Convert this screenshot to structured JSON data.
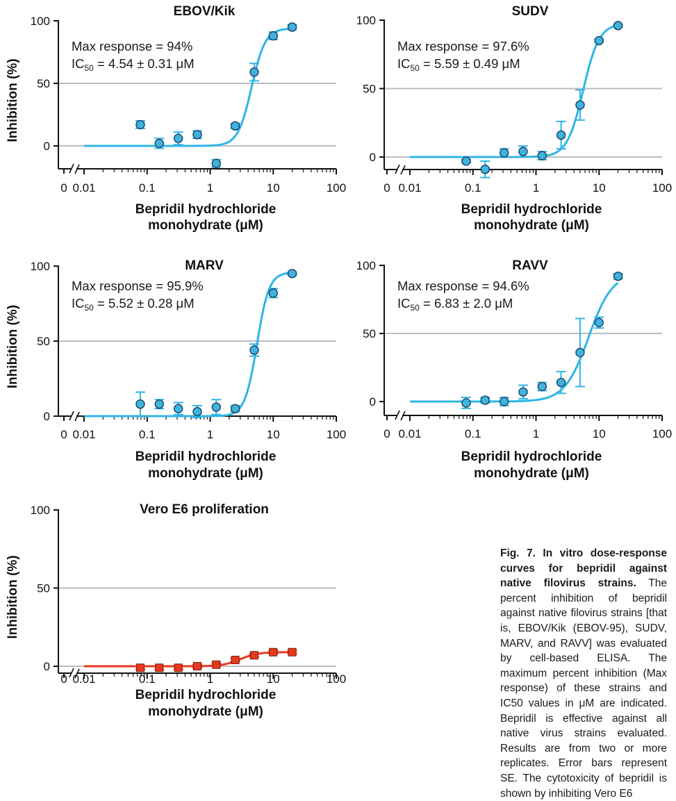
{
  "chart_data": [
    {
      "type": "scatter",
      "title": "EBOV/Kik",
      "ylabel": "Inhibition (%)",
      "xlabel": [
        "Bepridil hydrochloride",
        "monohydrate (μM)"
      ],
      "xscale": "log",
      "xlim": [
        0.01,
        100
      ],
      "ylim": [
        -20,
        100
      ],
      "x_ticks": [
        "0",
        "0.01",
        "0.1",
        "1",
        "10",
        "100"
      ],
      "y_ticks": [
        "0",
        "50",
        "100"
      ],
      "gridlines_y": [
        0,
        50
      ],
      "annotation": {
        "max_prefix": "Max response = ",
        "max": "94%",
        "ic_prefix": "IC",
        "ic_sub": "50",
        "ic_value": " = 4.54 ± 0.31 μM"
      },
      "color": "#2fb5e6",
      "marker": "circle",
      "fit": {
        "bottom": 0,
        "top": 94,
        "ic50": 4.54,
        "hill": 4.0
      },
      "points": [
        {
          "x": 0.078,
          "y": 17,
          "err": 3
        },
        {
          "x": 0.156,
          "y": 2,
          "err": 4
        },
        {
          "x": 0.3125,
          "y": 6,
          "err": 5
        },
        {
          "x": 0.625,
          "y": 9,
          "err": 3
        },
        {
          "x": 1.25,
          "y": -14,
          "err": 3
        },
        {
          "x": 2.5,
          "y": 16,
          "err": 2
        },
        {
          "x": 5,
          "y": 59,
          "err": 7
        },
        {
          "x": 10,
          "y": 88,
          "err": 3
        },
        {
          "x": 20,
          "y": 95,
          "err": 2
        }
      ]
    },
    {
      "type": "scatter",
      "title": "SUDV",
      "ylabel": "",
      "xlabel": [
        "Bepridil hydrochloride",
        "monohydrate (μM)"
      ],
      "xscale": "log",
      "xlim": [
        0.01,
        100
      ],
      "ylim": [
        -10,
        100
      ],
      "x_ticks": [
        "0",
        "0.01",
        "0.1",
        "1",
        "10",
        "100"
      ],
      "y_ticks": [
        "0",
        "50",
        "100"
      ],
      "gridlines_y": [
        0,
        50
      ],
      "annotation": {
        "max_prefix": "Max response = ",
        "max": "97.6%",
        "ic_prefix": "IC",
        "ic_sub": "50",
        "ic_value": " = 5.59 ± 0.49 μM"
      },
      "color": "#2fb5e6",
      "marker": "circle",
      "fit": {
        "bottom": 0,
        "top": 97.6,
        "ic50": 5.59,
        "hill": 3.4
      },
      "points": [
        {
          "x": 0.078,
          "y": -3,
          "err": 1
        },
        {
          "x": 0.156,
          "y": -9,
          "err": 6
        },
        {
          "x": 0.3125,
          "y": 3,
          "err": 3
        },
        {
          "x": 0.625,
          "y": 4,
          "err": 4
        },
        {
          "x": 1.25,
          "y": 1,
          "err": 3
        },
        {
          "x": 2.5,
          "y": 16,
          "err": 10
        },
        {
          "x": 5,
          "y": 38,
          "err": 11
        },
        {
          "x": 10,
          "y": 85,
          "err": 1
        },
        {
          "x": 20,
          "y": 96,
          "err": 1
        }
      ]
    },
    {
      "type": "scatter",
      "title": "MARV",
      "ylabel": "Inhibition (%)",
      "xlabel": [
        "Bepridil hydrochloride",
        "monohydrate (μM)"
      ],
      "xscale": "log",
      "xlim": [
        0.01,
        100
      ],
      "ylim": [
        0,
        100
      ],
      "x_ticks": [
        "0",
        "0.01",
        "0.1",
        "1",
        "10",
        "100"
      ],
      "y_ticks": [
        "0",
        "50",
        "100"
      ],
      "gridlines_y": [
        50
      ],
      "annotation": {
        "max_prefix": "Max response = ",
        "max": "95.9%",
        "ic_prefix": "IC",
        "ic_sub": "50",
        "ic_value": " = 5.52 ± 0.28 μM"
      },
      "color": "#2fb5e6",
      "marker": "circle",
      "fit": {
        "bottom": 0,
        "top": 95.9,
        "ic50": 5.52,
        "hill": 4.5
      },
      "points": [
        {
          "x": 0.078,
          "y": 8,
          "err": 8
        },
        {
          "x": 0.156,
          "y": 8,
          "err": 3
        },
        {
          "x": 0.3125,
          "y": 5,
          "err": 4
        },
        {
          "x": 0.625,
          "y": 3,
          "err": 4
        },
        {
          "x": 1.25,
          "y": 6,
          "err": 5
        },
        {
          "x": 2.5,
          "y": 5,
          "err": 2
        },
        {
          "x": 5,
          "y": 44,
          "err": 4
        },
        {
          "x": 10,
          "y": 82,
          "err": 3
        },
        {
          "x": 20,
          "y": 95,
          "err": 1
        }
      ]
    },
    {
      "type": "scatter",
      "title": "RAVV",
      "ylabel": "",
      "xlabel": [
        "Bepridil hydrochloride",
        "monohydrate (μM)"
      ],
      "xscale": "log",
      "xlim": [
        0.01,
        100
      ],
      "ylim": [
        -10,
        100
      ],
      "x_ticks": [
        "0",
        "0.01",
        "0.1",
        "1",
        "10",
        "100"
      ],
      "y_ticks": [
        "0",
        "50",
        "100"
      ],
      "gridlines_y": [
        50
      ],
      "annotation": {
        "max_prefix": "Max response = ",
        "max": "94.6%",
        "ic_prefix": "IC",
        "ic_sub": "50",
        "ic_value": " = 6.83 ± 2.0 μM"
      },
      "color": "#2fb5e6",
      "marker": "circle",
      "fit": {
        "bottom": 0,
        "top": 94.6,
        "ic50": 6.83,
        "hill": 2.3
      },
      "points": [
        {
          "x": 0.078,
          "y": -1,
          "err": 4
        },
        {
          "x": 0.156,
          "y": 1,
          "err": 2
        },
        {
          "x": 0.3125,
          "y": 0,
          "err": 3
        },
        {
          "x": 0.625,
          "y": 7,
          "err": 5
        },
        {
          "x": 1.25,
          "y": 11,
          "err": 3
        },
        {
          "x": 2.5,
          "y": 14,
          "err": 8
        },
        {
          "x": 5,
          "y": 36,
          "err": 25
        },
        {
          "x": 10,
          "y": 58,
          "err": 4
        },
        {
          "x": 20,
          "y": 92,
          "err": 2
        }
      ]
    },
    {
      "type": "scatter",
      "title": "Vero E6 proliferation",
      "ylabel": "Inhibition (%)",
      "xlabel": [
        "Bepridil hydrochloride",
        "monohydrate (μM)"
      ],
      "xscale": "log",
      "xlim": [
        0.01,
        100
      ],
      "ylim": [
        -5,
        100
      ],
      "x_ticks": [
        "0",
        "0.01",
        "0.1",
        "1",
        "10",
        "100"
      ],
      "y_ticks": [
        "0",
        "50",
        "100"
      ],
      "gridlines_y": [
        0,
        50
      ],
      "annotation": null,
      "color": "#e63a1f",
      "marker": "square",
      "fit": {
        "bottom": 0,
        "top": 9,
        "ic50": 3,
        "hill": 3.2
      },
      "points": [
        {
          "x": 0.078,
          "y": -1,
          "err": 1
        },
        {
          "x": 0.156,
          "y": -1,
          "err": 1
        },
        {
          "x": 0.3125,
          "y": -1,
          "err": 1
        },
        {
          "x": 0.625,
          "y": 0,
          "err": 1
        },
        {
          "x": 1.25,
          "y": 1,
          "err": 1
        },
        {
          "x": 2.5,
          "y": 4,
          "err": 1
        },
        {
          "x": 5,
          "y": 7,
          "err": 1
        },
        {
          "x": 10,
          "y": 9,
          "err": 1
        },
        {
          "x": 20,
          "y": 9,
          "err": 1
        }
      ]
    }
  ],
  "caption": {
    "bold": "Fig. 7. In vitro dose-response curves for bepridil against native filovirus strains.",
    "body": "The percent inhibition of bepridil against native filovirus strains [that is, EBOV/Kik (EBOV-95), SUDV, MARV, and RAVV] was evaluated by cell-based ELISA. The maximum percent inhibition (Max response) of these strains and IC50 values in μM are indicated. Bepridil is effective against all native virus strains evaluated. Results are from two or more replicates. Error bars represent SE. The cytotoxicity of bepridil is shown by inhibiting Vero E6"
  }
}
